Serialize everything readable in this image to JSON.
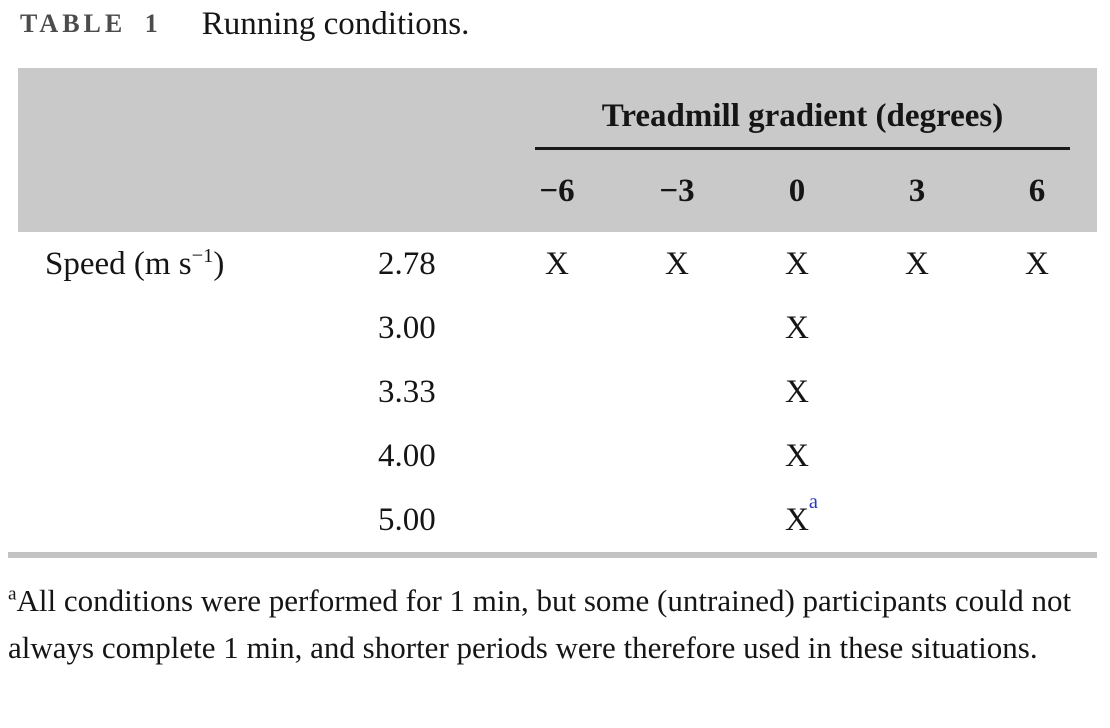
{
  "title": {
    "label": "TABLE 1",
    "caption": "Running conditions."
  },
  "table": {
    "group_header": "Treadmill gradient (degrees)",
    "gradient_columns": [
      "−6",
      "−3",
      "0",
      "3",
      "6"
    ],
    "row_header": {
      "text": "Speed (m s",
      "sup": "−1",
      "close": ")"
    },
    "rows": [
      {
        "speed": "2.78",
        "marks": [
          "X",
          "X",
          "X",
          "X",
          "X"
        ],
        "footnote_marker": ""
      },
      {
        "speed": "3.00",
        "marks": [
          "",
          "",
          "X",
          "",
          ""
        ],
        "footnote_marker": ""
      },
      {
        "speed": "3.33",
        "marks": [
          "",
          "",
          "X",
          "",
          ""
        ],
        "footnote_marker": ""
      },
      {
        "speed": "4.00",
        "marks": [
          "",
          "",
          "X",
          "",
          ""
        ],
        "footnote_marker": ""
      },
      {
        "speed": "5.00",
        "marks": [
          "",
          "",
          "X",
          "",
          ""
        ],
        "footnote_marker": "a"
      }
    ]
  },
  "footnote": {
    "marker": "a",
    "text": "All conditions were performed for 1 min, but some (untrained) participants could not always complete 1 min, and shorter periods were therefore used in these situations."
  },
  "colors": {
    "header_bg": "#c9c9c9",
    "header_rule": "#1a1a1a",
    "bottom_rule": "#c3c3c3",
    "title_label": "#4c4c4c",
    "text": "#151515",
    "footnote_marker_blue": "#2936c8"
  }
}
